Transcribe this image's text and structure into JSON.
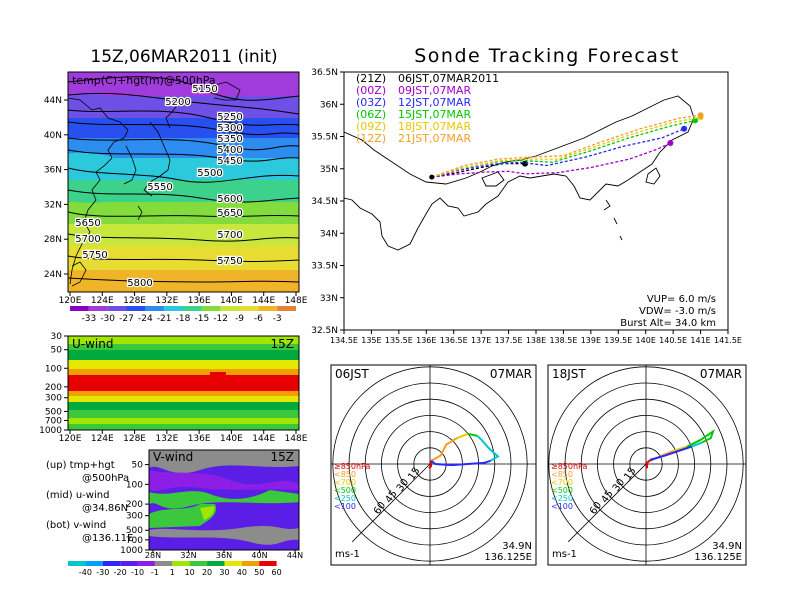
{
  "main_title": "Sonde Tracking Forecast",
  "left_title": "15Z,06MAR2011 (init)",
  "chart_data": [
    {
      "type": "heatmap",
      "panel": "upper-left map",
      "title": "temp(C)+hgt(m)@500hPa",
      "xticks": [
        "120E",
        "124E",
        "128E",
        "132E",
        "136E",
        "140E",
        "144E",
        "148E"
      ],
      "yticks": [
        "24N",
        "28N",
        "32N",
        "36N",
        "40N",
        "44N"
      ],
      "contour_labels": [
        "5150",
        "5200",
        "5250",
        "5300",
        "5350",
        "5400",
        "5450",
        "5500",
        "5550",
        "5600",
        "5650",
        "5650",
        "5700",
        "5700",
        "5750",
        "5750",
        "5800"
      ],
      "colorbar_labels": [
        "-33",
        "-30",
        "-27",
        "-24",
        "-21",
        "-18",
        "-15",
        "-12",
        "-9",
        "-6",
        "-3"
      ]
    },
    {
      "type": "heatmap",
      "panel": "u-wind",
      "title": "U-wind",
      "time": "15Z",
      "xticks": [
        "120E",
        "124E",
        "128E",
        "132E",
        "136E",
        "140E",
        "144E",
        "148E"
      ],
      "yticks": [
        "30",
        "50",
        "100",
        "200",
        "300",
        "500",
        "700",
        "1000"
      ]
    },
    {
      "type": "heatmap",
      "panel": "v-wind",
      "title": "V-wind",
      "time": "15Z",
      "xticks": [
        "28N",
        "32N",
        "36N",
        "40N",
        "44N"
      ],
      "yticks": [
        "50",
        "100",
        "200",
        "300",
        "500",
        "700",
        "1000"
      ],
      "colorbar_labels": [
        "-40",
        "-30",
        "-20",
        "-10",
        "-1",
        "1",
        "10",
        "20",
        "30",
        "40",
        "50",
        "60"
      ]
    },
    {
      "type": "line",
      "panel": "track map",
      "xticks": [
        "134.5E",
        "135E",
        "135.5E",
        "136E",
        "136.5E",
        "137E",
        "137.5E",
        "138E",
        "138.5E",
        "139E",
        "139.5E",
        "140E",
        "140.5E",
        "141E",
        "141.5E"
      ],
      "yticks": [
        "32.5N",
        "33N",
        "33.5N",
        "34N",
        "34.5N",
        "35N",
        "35.5N",
        "36N",
        "36.5N"
      ],
      "xlim": [
        134.5,
        141.5
      ],
      "ylim": [
        32.5,
        36.5
      ],
      "legend": [
        {
          "tag": "(21Z)",
          "text": "06JST,07MAR2011",
          "color": "#000000"
        },
        {
          "tag": "(00Z)",
          "text": "09JST,07MAR",
          "color": "#a000c8"
        },
        {
          "tag": "(03Z)",
          "text": "12JST,07MAR",
          "color": "#2828ff"
        },
        {
          "tag": "(06Z)",
          "text": "15JST,07MAR",
          "color": "#00c800"
        },
        {
          "tag": "(09Z)",
          "text": "18JST,07MAR",
          "color": "#e6c800"
        },
        {
          "tag": "(12Z)",
          "text": "21JST,07MAR",
          "color": "#f0a028"
        }
      ],
      "series": [
        {
          "name": "(21Z)",
          "color": "#000000",
          "x": [
            136.1,
            136.5,
            137.0,
            137.4,
            137.8
          ],
          "y": [
            34.87,
            34.93,
            35.02,
            35.08,
            35.08
          ]
        },
        {
          "name": "(00Z)",
          "color": "#a000c8",
          "x": [
            136.1,
            136.6,
            137.1,
            137.5,
            137.8,
            138.4,
            139.0,
            139.7,
            140.2,
            140.45
          ],
          "y": [
            34.87,
            34.92,
            34.95,
            34.96,
            34.92,
            34.94,
            35.02,
            35.15,
            35.3,
            35.4
          ]
        },
        {
          "name": "(03Z)",
          "color": "#2828ff",
          "x": [
            136.1,
            136.6,
            137.2,
            137.7,
            138.2,
            138.9,
            139.6,
            140.3,
            140.7
          ],
          "y": [
            34.87,
            34.98,
            35.07,
            35.1,
            35.05,
            35.18,
            35.35,
            35.48,
            35.62
          ]
        },
        {
          "name": "(06Z)",
          "color": "#00c800",
          "x": [
            136.1,
            136.6,
            137.2,
            137.7,
            138.3,
            139.0,
            139.7,
            140.4,
            140.9
          ],
          "y": [
            34.87,
            35.0,
            35.1,
            35.13,
            35.1,
            35.28,
            35.48,
            35.65,
            35.75
          ]
        },
        {
          "name": "(09Z)",
          "color": "#e6c800",
          "x": [
            136.1,
            136.7,
            137.3,
            137.8,
            138.4,
            139.1,
            139.8,
            140.5,
            141.0
          ],
          "y": [
            34.87,
            35.02,
            35.12,
            35.15,
            35.15,
            35.35,
            35.55,
            35.72,
            35.8
          ]
        },
        {
          "name": "(12Z)",
          "color": "#f0a028",
          "x": [
            136.1,
            136.7,
            137.3,
            137.9,
            138.5,
            139.2,
            139.9,
            140.6,
            141.0
          ],
          "y": [
            34.87,
            35.05,
            35.15,
            35.18,
            35.2,
            35.42,
            35.62,
            35.78,
            35.83
          ]
        }
      ],
      "params": {
        "vup": "VUP=  6.0  m/s",
        "vdw": "VDW= -3.0  m/s",
        "burst": "Burst Alt= 34.0  km"
      }
    },
    {
      "type": "line",
      "panel": "hodograph 06JST",
      "label_left": "06JST",
      "label_right": "07MAR",
      "ring_labels": [
        "15",
        "30",
        "45",
        "60"
      ],
      "levels": [
        {
          "text": "≥850hPa",
          "color": "#e60000"
        },
        {
          "text": "<850",
          "color": "#f0a028"
        },
        {
          "text": "<700",
          "color": "#e6c800"
        },
        {
          "text": "<500",
          "color": "#00c800"
        },
        {
          "text": "<250",
          "color": "#00c8c8"
        },
        {
          "text": "<100",
          "color": "#2828ff"
        }
      ],
      "series": [
        {
          "level": "≥850hPa",
          "color": "#e60000",
          "u": [
            -1,
            1,
            1
          ],
          "v": [
            -4,
            -2,
            3
          ]
        },
        {
          "level": "<850",
          "color": "#f0a028",
          "u": [
            1,
            10,
            15,
            25
          ],
          "v": [
            3,
            8,
            18,
            24
          ]
        },
        {
          "level": "<700",
          "color": "#e6c800",
          "u": [
            25,
            35
          ],
          "v": [
            24,
            28
          ]
        },
        {
          "level": "<500",
          "color": "#00c800",
          "u": [
            35,
            44
          ],
          "v": [
            28,
            26
          ]
        },
        {
          "level": "<250",
          "color": "#00c8c8",
          "u": [
            44,
            48,
            55,
            63,
            56
          ],
          "v": [
            26,
            22,
            14,
            7,
            3
          ]
        },
        {
          "level": "<100",
          "color": "#2828ff",
          "u": [
            56,
            50,
            35,
            20,
            5,
            1
          ],
          "v": [
            3,
            1,
            0,
            -1,
            0,
            3
          ]
        }
      ],
      "ms_label": "ms-1",
      "lat": "34.9N",
      "lon": "136.125E"
    },
    {
      "type": "line",
      "panel": "hodograph 18JST",
      "label_left": "18JST",
      "label_right": "07MAR",
      "ring_labels": [
        "15",
        "30",
        "45",
        "60"
      ],
      "levels": [
        {
          "text": "≥850hPa",
          "color": "#e60000"
        },
        {
          "text": "<850",
          "color": "#f0a028"
        },
        {
          "text": "<700",
          "color": "#e6c800"
        },
        {
          "text": "<500",
          "color": "#00c800"
        },
        {
          "text": "<250",
          "color": "#00c8c8"
        },
        {
          "text": "<100",
          "color": "#2828ff"
        }
      ],
      "series": [
        {
          "level": "≥850hPa",
          "color": "#e60000",
          "u": [
            1,
            1,
            3,
            6
          ],
          "v": [
            -4,
            1,
            3,
            4
          ]
        },
        {
          "level": "<850",
          "color": "#f0a028",
          "u": [
            6,
            15,
            25
          ],
          "v": [
            4,
            8,
            12
          ]
        },
        {
          "level": "<700",
          "color": "#e6c800",
          "u": [
            25,
            38
          ],
          "v": [
            12,
            16
          ]
        },
        {
          "level": "<500",
          "color": "#00c800",
          "u": [
            38,
            50,
            62,
            60,
            52
          ],
          "v": [
            16,
            22,
            30,
            24,
            20
          ]
        },
        {
          "level": "<250",
          "color": "#00c8c8",
          "u": [
            52,
            42
          ],
          "v": [
            20,
            16
          ]
        },
        {
          "level": "<100",
          "color": "#2828ff",
          "u": [
            42,
            30,
            18,
            8,
            4
          ],
          "v": [
            16,
            12,
            8,
            5,
            4
          ]
        }
      ],
      "ms_label": "ms-1",
      "lat": "34.9N",
      "lon": "136.125E"
    }
  ],
  "legend_text": {
    "up_1": "(up) tmp+hgt",
    "up_2": "@500hPa",
    "mid_1": "(mid) u-wind",
    "mid_2": "@34.86N",
    "bot_1": "(bot) v-wind",
    "bot_2": "@136.11E"
  },
  "colors": {
    "temp_scale": [
      "#8c00c8",
      "#a03cdc",
      "#6e50e6",
      "#2850f0",
      "#2c8cf0",
      "#2cc8dc",
      "#3cd28c",
      "#82dc3c",
      "#c8e63c",
      "#e6dc32",
      "#f0b428",
      "#e68232"
    ],
    "wind_scale": [
      "#00c8c8",
      "#00a0ff",
      "#2828ff",
      "#5a1ee6",
      "#8c1ee6",
      "#8c8c8c",
      "#a0e600",
      "#3cc83c",
      "#00aa3c",
      "#e6e600",
      "#f0a000",
      "#e60000"
    ]
  }
}
